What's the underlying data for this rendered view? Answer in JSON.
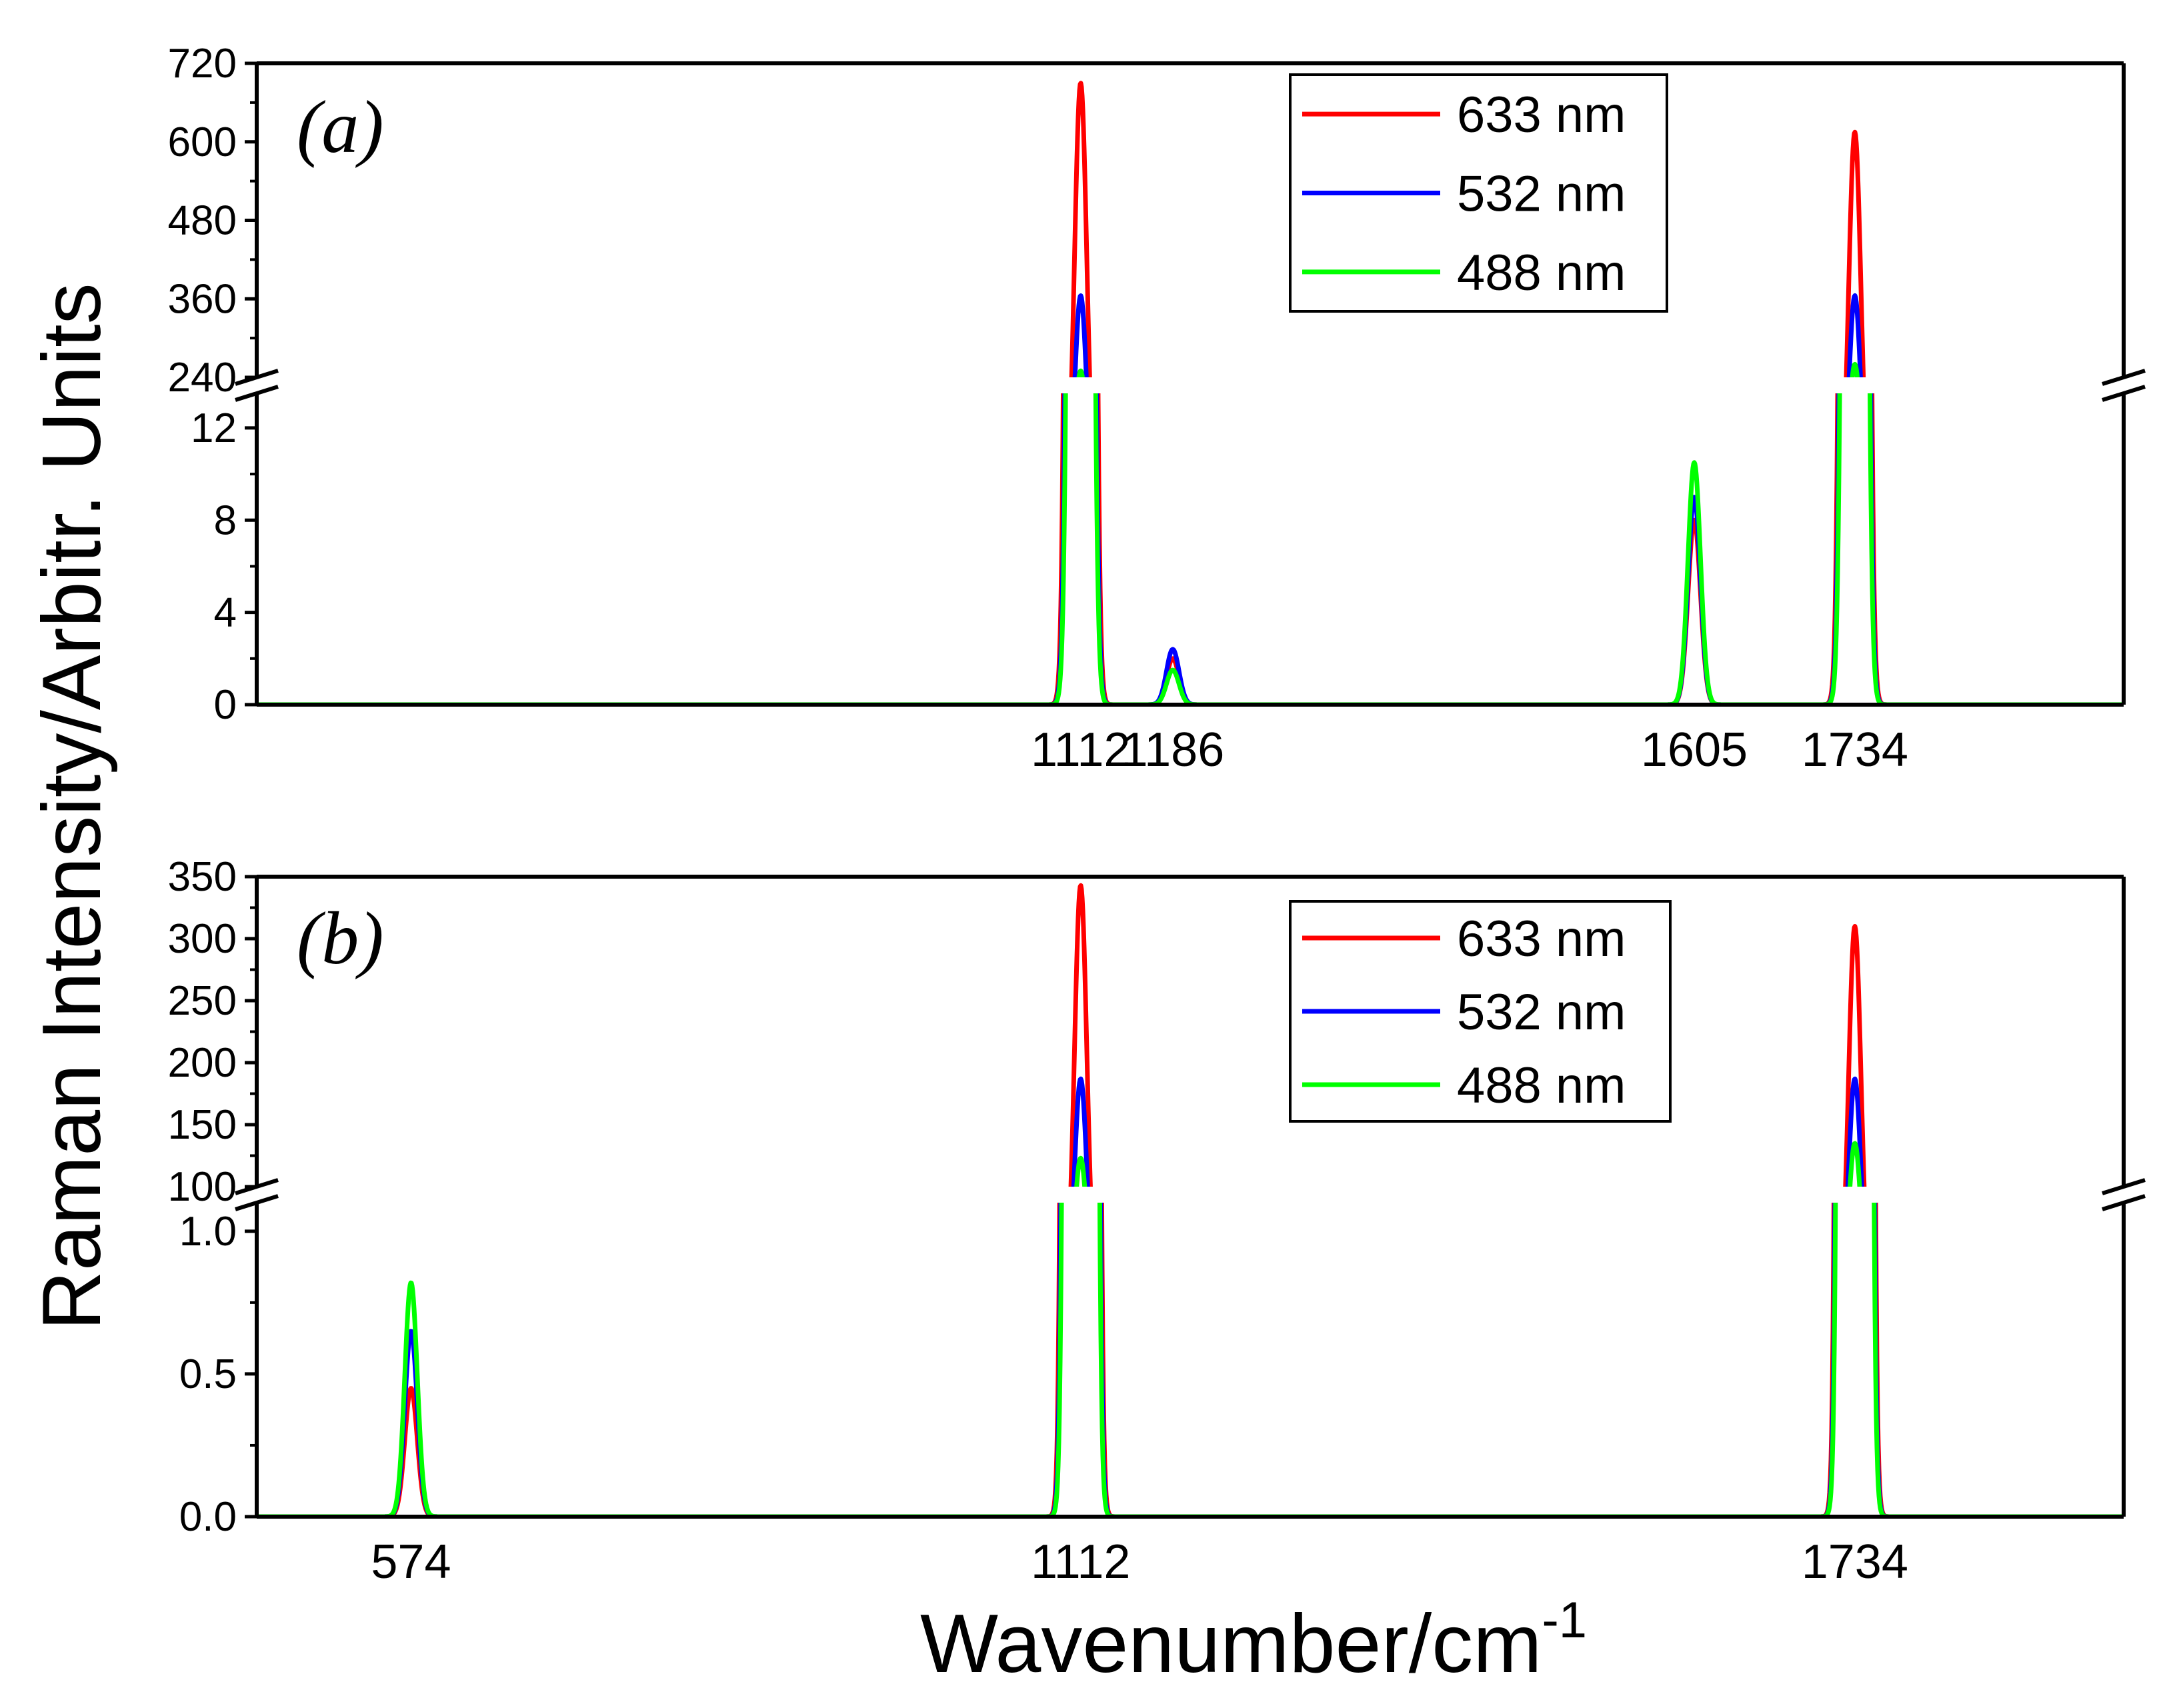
{
  "chart_data": [
    {
      "panel": "(a)",
      "type": "line",
      "panel_label": "a",
      "xlabel": "Wavenumber/cm",
      "xlabel_superscript": "-1",
      "ylabel": "Raman Intensity/Arbitr. Units",
      "xlim": [
        450,
        1950
      ],
      "y_axis_break": {
        "lower_ylim": [
          0,
          13.5
        ],
        "upper_ylim": [
          240,
          720
        ],
        "lower_ticks": [
          "0",
          "4",
          "8",
          "12"
        ],
        "upper_ticks": [
          "240",
          "360",
          "480",
          "600",
          "720"
        ]
      },
      "peak_tick_labels": [
        "1112",
        "1186",
        "1605",
        "1734"
      ],
      "peak_width_cm": 5,
      "legend": {
        "placement": "top-right",
        "entries": [
          "633 nm",
          "532 nm",
          "488 nm"
        ]
      },
      "series": [
        {
          "name": "633 nm",
          "color": "#ff0000",
          "peaks": [
            [
              1112,
              690
            ],
            [
              1186,
              2.0
            ],
            [
              1605,
              8.0
            ],
            [
              1734,
              615
            ]
          ]
        },
        {
          "name": "532 nm",
          "color": "#0000ff",
          "peaks": [
            [
              1112,
              365
            ],
            [
              1186,
              2.4
            ],
            [
              1605,
              9.0
            ],
            [
              1734,
              365
            ]
          ]
        },
        {
          "name": "488 nm",
          "color": "#00ff00",
          "peaks": [
            [
              1112,
              250
            ],
            [
              1186,
              1.5
            ],
            [
              1605,
              10.5
            ],
            [
              1734,
              260
            ]
          ]
        }
      ]
    },
    {
      "panel": "(b)",
      "type": "line",
      "panel_label": "b",
      "xlabel": "Wavenumber/cm",
      "xlabel_superscript": "-1",
      "xlim": [
        450,
        1950
      ],
      "y_axis_break": {
        "lower_ylim": [
          0,
          1.1
        ],
        "upper_ylim": [
          100,
          350
        ],
        "lower_ticks": [
          "0.0",
          "0.5",
          "1.0"
        ],
        "upper_ticks": [
          "100",
          "150",
          "200",
          "250",
          "300",
          "350"
        ]
      },
      "peak_tick_labels": [
        "574",
        "1112",
        "1734"
      ],
      "peak_width_cm": 5,
      "legend": {
        "placement": "top-right",
        "entries": [
          "633 nm",
          "532 nm",
          "488 nm"
        ]
      },
      "series": [
        {
          "name": "633 nm",
          "color": "#ff0000",
          "peaks": [
            [
              574,
              0.45
            ],
            [
              1112,
              343
            ],
            [
              1734,
              310
            ]
          ]
        },
        {
          "name": "532 nm",
          "color": "#0000ff",
          "peaks": [
            [
              574,
              0.65
            ],
            [
              1112,
              187
            ],
            [
              1734,
              187
            ]
          ]
        },
        {
          "name": "488 nm",
          "color": "#00ff00",
          "peaks": [
            [
              574,
              0.82
            ],
            [
              1112,
              123
            ],
            [
              1734,
              135
            ]
          ]
        }
      ]
    }
  ]
}
